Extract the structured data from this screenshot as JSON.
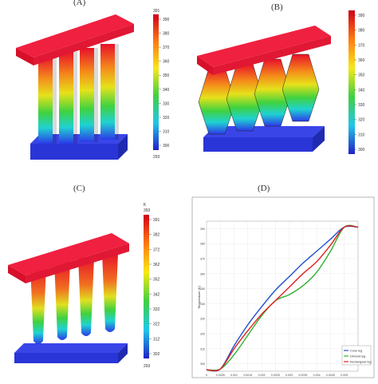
{
  "panels": {
    "a": {
      "label": "(A)",
      "cb_top": "391",
      "cb_bottom": "293",
      "ticks": [
        "390",
        "380",
        "370",
        "360",
        "350",
        "340",
        "330",
        "320",
        "310",
        "300"
      ]
    },
    "b": {
      "label": "(B)",
      "ticks": [
        "390",
        "380",
        "370",
        "360",
        "350",
        "340",
        "330",
        "320",
        "310",
        "300"
      ]
    },
    "c": {
      "label": "(C)",
      "cb_unit": "K",
      "cb_top": "393",
      "cb_bottom": "293",
      "ticks": [
        "391",
        "382",
        "372",
        "362",
        "352",
        "342",
        "332",
        "322",
        "312",
        "302"
      ]
    },
    "d": {
      "label": "(D)"
    }
  },
  "chart_data": {
    "type": "line",
    "title": "",
    "xlabel": "",
    "ylabel": "Temperature (K)",
    "xlim": [
      0,
      0.0055
    ],
    "ylim": [
      295,
      395
    ],
    "xticks": [
      "0",
      "0.0005",
      "0.001",
      "0.0015",
      "0.002",
      "0.0025",
      "0.003",
      "0.0035",
      "0.004",
      "0.0045",
      "0.005"
    ],
    "yticks": [
      "300",
      "310",
      "320",
      "330",
      "340",
      "350",
      "360",
      "370",
      "380",
      "390"
    ],
    "series": [
      {
        "name": "Cone leg",
        "color": "#2050d0",
        "x": [
          0,
          0.0005,
          0.001,
          0.0015,
          0.002,
          0.0025,
          0.003,
          0.0035,
          0.004,
          0.0045,
          0.005,
          0.0055
        ],
        "y": [
          296,
          296.5,
          312,
          326,
          338,
          349,
          358,
          367,
          375,
          383,
          391,
          391
        ]
      },
      {
        "name": "Dimond leg",
        "color": "#30b030",
        "x": [
          0,
          0.0005,
          0.001,
          0.0015,
          0.002,
          0.0025,
          0.003,
          0.0035,
          0.004,
          0.0045,
          0.005,
          0.0055
        ],
        "y": [
          296,
          296.5,
          306,
          319,
          332,
          342,
          346,
          352,
          361,
          375,
          391,
          391
        ]
      },
      {
        "name": "Rectangular leg",
        "color": "#e02020",
        "x": [
          0,
          0.0005,
          0.001,
          0.0015,
          0.002,
          0.0025,
          0.003,
          0.0035,
          0.004,
          0.0045,
          0.005,
          0.0055
        ],
        "y": [
          296,
          296.5,
          310,
          322,
          333,
          342,
          351,
          360,
          368,
          379,
          391,
          391
        ]
      }
    ],
    "legend_position": "bottom-right"
  }
}
